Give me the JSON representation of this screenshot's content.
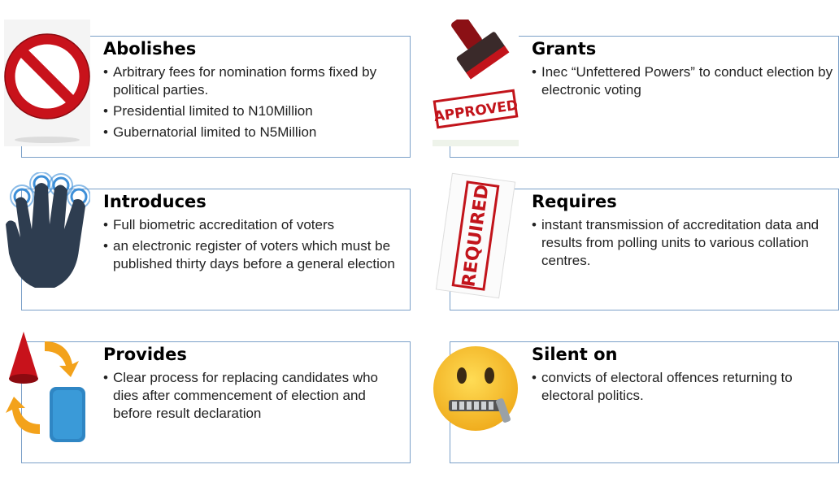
{
  "sections": [
    {
      "title": "Abolishes",
      "items": [
        "Arbitrary fees for nomination forms fixed by political parties.",
        "Presidential limited to N10Million",
        "Gubernatorial limited to N5Million"
      ],
      "icon": "no-entry-sign-icon"
    },
    {
      "title": "Grants",
      "items": [
        "Inec “Unfettered Powers” to conduct election by electronic voting"
      ],
      "icon": "approved-stamp-icon",
      "stamp_text": "APPROVED"
    },
    {
      "title": "Introduces",
      "items": [
        "Full biometric accreditation of voters",
        "an electronic register of voters which must be published thirty days before a general election"
      ],
      "icon": "touch-hand-icon"
    },
    {
      "title": "Requires",
      "items": [
        "instant transmission of accreditation data and results from polling units to various collation centres."
      ],
      "icon": "required-stamp-icon",
      "stamp_text": "REQUIRED"
    },
    {
      "title": "Provides",
      "items": [
        "Clear process for replacing candidates who dies after commencement of election and before result declaration"
      ],
      "icon": "replace-cycle-icon"
    },
    {
      "title": "Silent on",
      "items": [
        "convicts of electoral offences returning to electoral politics."
      ],
      "icon": "zipper-mouth-face-icon"
    }
  ],
  "colors": {
    "border": "#7ba0c8",
    "red": "#d3141c",
    "hand": "#2e3d50",
    "touch_ring": "#3d8fd8",
    "emoji_yellow": "#f5c330"
  }
}
